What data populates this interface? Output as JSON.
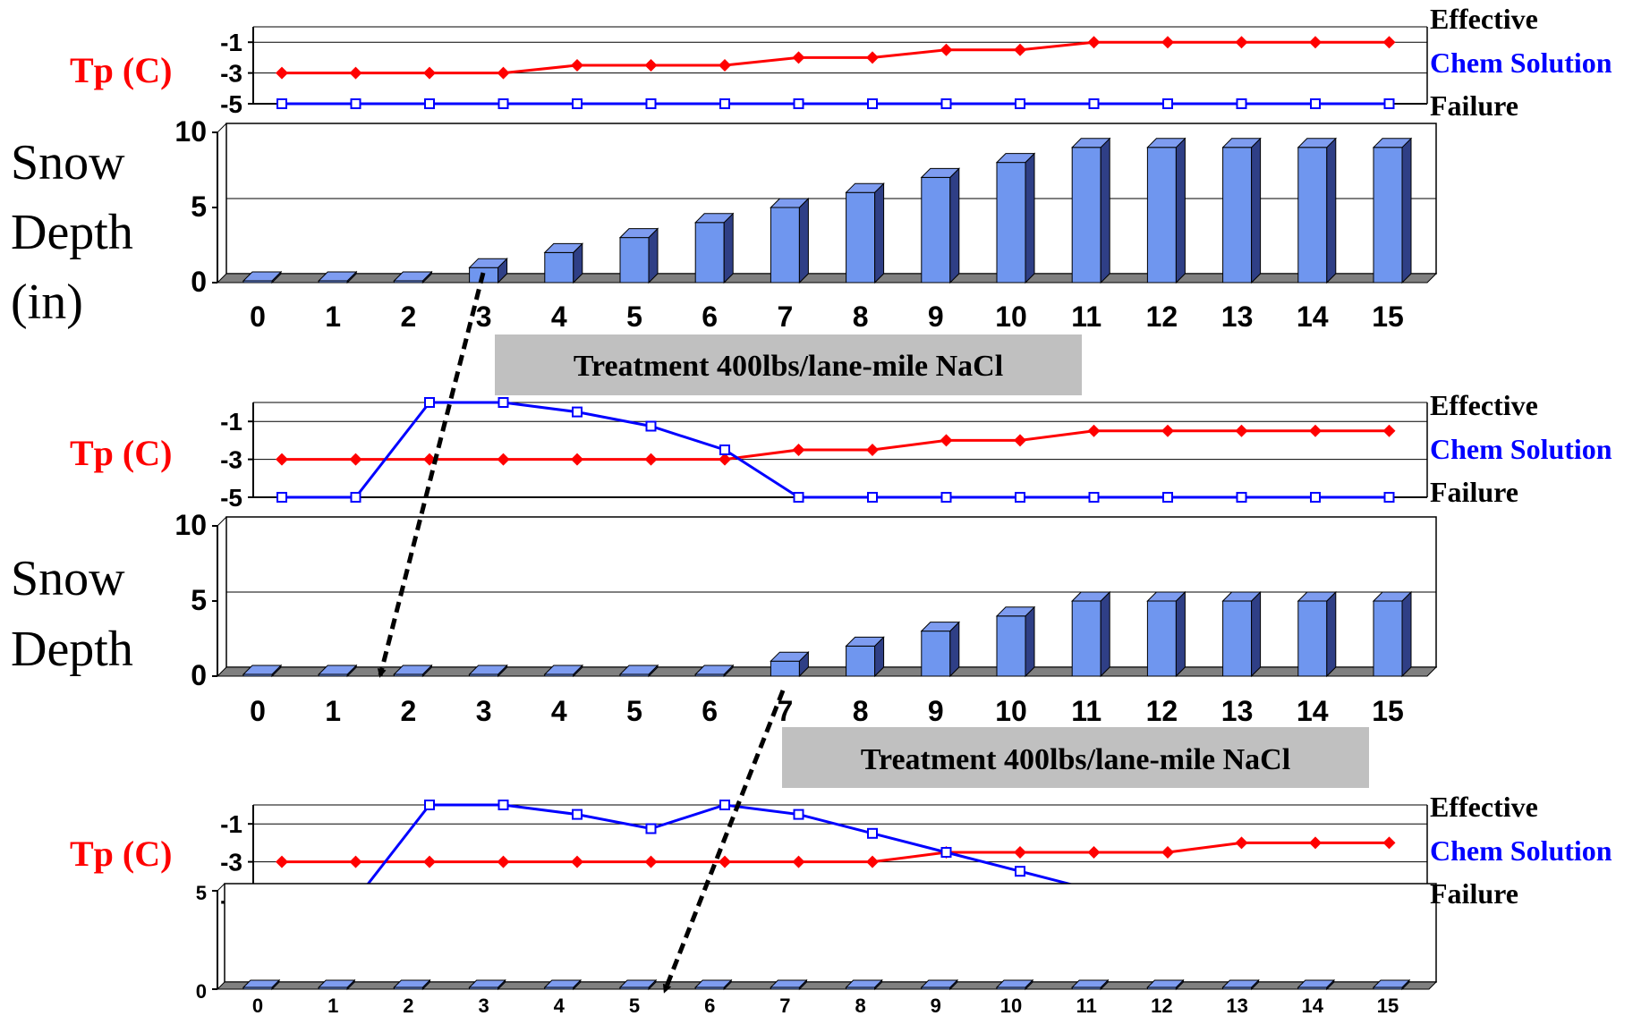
{
  "colors": {
    "temperature": "#ff0000",
    "chem_solution": "#0000ff",
    "bar_front": "#6f96ef",
    "bar_side": "#2f3f86",
    "bar_top": "#7e9cf0",
    "treatment_box": "#c0c0c0"
  },
  "panels": [
    {
      "side_label": [
        "Snow",
        "Depth",
        "(in)"
      ],
      "tp_label": "Tp (C)",
      "legend": {
        "effective": "Effective",
        "chem": "Chem Solution",
        "failure": "Failure"
      },
      "treatment_label": "Treatment 400lbs/lane-mile NaCl"
    },
    {
      "side_label": [
        "Snow",
        "Depth"
      ],
      "tp_label": "Tp (C)",
      "legend": {
        "effective": "Effective",
        "chem": "Chem Solution",
        "failure": "Failure"
      },
      "treatment_label": "Treatment 400lbs/lane-mile NaCl"
    },
    {
      "side_label": [],
      "tp_label": "Tp (C)",
      "legend": {
        "effective": "Effective",
        "chem": "Chem Solution",
        "failure": "Failure"
      },
      "treatment_label": ""
    }
  ],
  "chart_data": [
    {
      "type": "line",
      "x": [
        0,
        1,
        2,
        3,
        4,
        5,
        6,
        7,
        8,
        9,
        10,
        11,
        12,
        13,
        14,
        15
      ],
      "ylim": [
        -5,
        -1
      ],
      "yticks": [
        "-1",
        "-3",
        "-5"
      ],
      "series": [
        {
          "values": [
            -3,
            -3,
            -3,
            -3,
            -2.5,
            -2.5,
            -2.5,
            -2,
            -2,
            -1.5,
            -1.5,
            -1,
            -1,
            -1,
            -1,
            -1
          ]
        },
        {
          "values": [
            -5,
            -5,
            -5,
            -5,
            -5,
            -5,
            -5,
            -5,
            -5,
            -5,
            -5,
            -5,
            -5,
            -5,
            -5,
            -5
          ]
        }
      ]
    },
    {
      "type": "bar",
      "categories": [
        "0",
        "1",
        "2",
        "3",
        "4",
        "5",
        "6",
        "7",
        "8",
        "9",
        "10",
        "11",
        "12",
        "13",
        "14",
        "15"
      ],
      "values": [
        0,
        0,
        0,
        1,
        2,
        3,
        4,
        5,
        6,
        7,
        8,
        9,
        9,
        9,
        9,
        9
      ],
      "ylim": [
        0,
        10
      ],
      "yticks": [
        "10",
        "5",
        "0"
      ]
    },
    {
      "type": "line",
      "x": [
        0,
        1,
        2,
        3,
        4,
        5,
        6,
        7,
        8,
        9,
        10,
        11,
        12,
        13,
        14,
        15
      ],
      "ylim": [
        -5,
        -1
      ],
      "yticks": [
        "-1",
        "-3",
        "-5"
      ],
      "series": [
        {
          "values": [
            -3,
            -3,
            -3,
            -3,
            -3,
            -3,
            -3,
            -2.5,
            -2.5,
            -2,
            -2,
            -1.5,
            -1.5,
            -1.5,
            -1.5,
            -1.5
          ]
        },
        {
          "values": [
            -5,
            -5,
            0,
            0,
            -0.5,
            -1.25,
            -2.5,
            -5,
            -5,
            -5,
            -5,
            -5,
            -5,
            -5,
            -5,
            -5
          ]
        }
      ]
    },
    {
      "type": "bar",
      "categories": [
        "0",
        "1",
        "2",
        "3",
        "4",
        "5",
        "6",
        "7",
        "8",
        "9",
        "10",
        "11",
        "12",
        "13",
        "14",
        "15"
      ],
      "values": [
        0,
        0,
        0,
        0,
        0,
        0,
        0,
        1,
        2,
        3,
        4,
        5,
        5,
        5,
        5,
        5
      ],
      "ylim": [
        0,
        10
      ],
      "yticks": [
        "10",
        "5",
        "0"
      ]
    },
    {
      "type": "line",
      "x": [
        0,
        1,
        2,
        3,
        4,
        5,
        6,
        7,
        8,
        9,
        10,
        11,
        12,
        13,
        14,
        15
      ],
      "ylim": [
        -5,
        -1
      ],
      "yticks": [
        "-1",
        "-3",
        "-5"
      ],
      "series": [
        {
          "values": [
            -3,
            -3,
            -3,
            -3,
            -3,
            -3,
            -3,
            -3,
            -3,
            -2.5,
            -2.5,
            -2.5,
            -2.5,
            -2,
            -2,
            -2
          ]
        },
        {
          "values": [
            -5,
            -5,
            0,
            0,
            -0.5,
            -1.25,
            0,
            -0.5,
            -1.5,
            -2.5,
            -3.5,
            -4.5,
            -4.5,
            -5,
            -5,
            -5
          ]
        }
      ]
    },
    {
      "type": "bar",
      "categories": [
        "0",
        "1",
        "2",
        "3",
        "4",
        "5",
        "6",
        "7",
        "8",
        "9",
        "10",
        "11",
        "12",
        "13",
        "14",
        "15"
      ],
      "values": [
        0,
        0,
        0,
        0,
        0,
        0,
        0,
        0,
        0,
        0,
        0,
        0,
        0,
        0,
        0,
        0
      ],
      "ylim": [
        0,
        5
      ],
      "yticks": [
        "5",
        "0"
      ]
    }
  ]
}
